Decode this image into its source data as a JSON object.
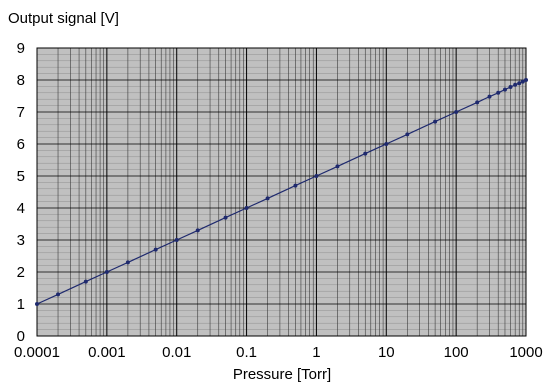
{
  "chart_data": {
    "type": "line",
    "ylabel": "Output signal [V]",
    "xlabel": "Pressure [Torr]",
    "x_scale": "log",
    "xlim": [
      0.0001,
      1000
    ],
    "ylim": [
      0,
      9
    ],
    "x_ticks": [
      0.0001,
      0.001,
      0.01,
      0.1,
      1,
      10,
      100,
      1000
    ],
    "x_tick_labels": [
      "0.0001",
      "0.001",
      "0.01",
      "0.1",
      "1",
      "10",
      "100",
      "1000"
    ],
    "y_ticks": [
      0,
      1,
      2,
      3,
      4,
      5,
      6,
      7,
      8,
      9
    ],
    "y_tick_labels": [
      "0",
      "1",
      "2",
      "3",
      "4",
      "5",
      "6",
      "7",
      "8",
      "9"
    ],
    "grid": true,
    "colors": {
      "plot_bg": "#c0c0c0",
      "line": "#1f2a6e",
      "grid": "#000000"
    },
    "series": [
      {
        "x": [
          0.0001,
          0.0002,
          0.0005,
          0.001,
          0.002,
          0.005,
          0.01,
          0.02,
          0.05,
          0.1,
          0.2,
          0.5,
          1,
          2,
          5,
          10,
          20,
          50,
          100,
          200,
          300,
          400,
          500,
          600,
          700,
          800,
          900,
          1000
        ],
        "values": [
          1.0,
          1.3,
          1.7,
          2.0,
          2.3,
          2.7,
          3.0,
          3.3,
          3.7,
          4.0,
          4.3,
          4.7,
          5.0,
          5.3,
          5.7,
          6.0,
          6.3,
          6.7,
          7.0,
          7.3,
          7.48,
          7.6,
          7.7,
          7.78,
          7.85,
          7.9,
          7.95,
          8.0
        ]
      }
    ]
  }
}
